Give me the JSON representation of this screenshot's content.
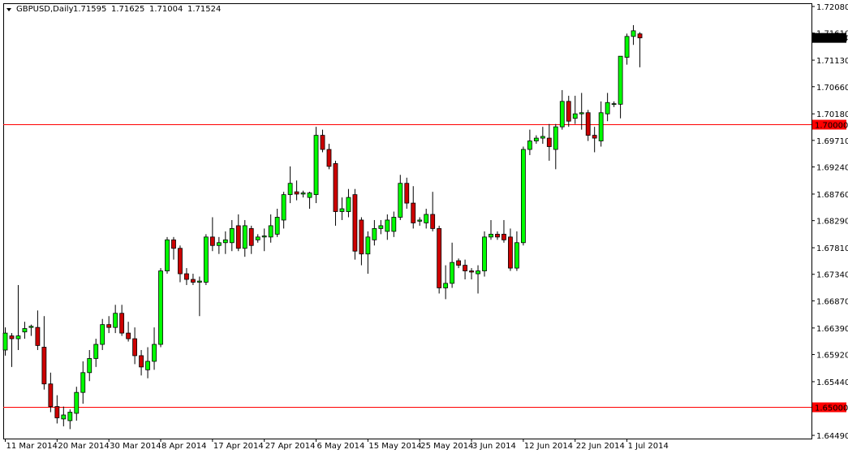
{
  "chart_data": {
    "type": "candlestick",
    "symbol": "GBPUSD,Daily",
    "categories": [
      "11 Mar 2014",
      null,
      null,
      null,
      null,
      null,
      null,
      null,
      "20 Mar 2014",
      null,
      null,
      null,
      null,
      null,
      null,
      null,
      "30 Mar 2014",
      null,
      null,
      null,
      null,
      null,
      null,
      null,
      "8 Apr 2014",
      null,
      null,
      null,
      null,
      null,
      null,
      null,
      "17 Apr 2014",
      null,
      null,
      null,
      null,
      null,
      null,
      null,
      "27 Apr 2014",
      null,
      null,
      null,
      null,
      null,
      null,
      null,
      "6 May 2014",
      null,
      null,
      null,
      null,
      null,
      null,
      null,
      "15 May 2014",
      null,
      null,
      null,
      null,
      null,
      null,
      null,
      "25 May 2014",
      null,
      null,
      null,
      null,
      null,
      null,
      null,
      "3 Jun 2014",
      null,
      null,
      null,
      null,
      null,
      null,
      null,
      "12 Jun 2014",
      null,
      null,
      null,
      null,
      null,
      null,
      null,
      "22 Jun 2014",
      null,
      null,
      null,
      null,
      null,
      null,
      null,
      "1 Jul 2014",
      null,
      null
    ],
    "open": [
      1.66,
      1.6625,
      1.662,
      1.6632,
      1.664,
      1.664,
      1.6605,
      1.654,
      1.65,
      1.6478,
      1.6475,
      1.6488,
      1.6525,
      1.656,
      1.6585,
      1.661,
      1.6645,
      1.664,
      1.6665,
      1.663,
      1.662,
      1.659,
      1.6565,
      1.658,
      1.661,
      1.674,
      1.6795,
      1.678,
      1.6735,
      1.6725,
      1.672,
      1.672,
      1.68,
      1.6785,
      1.679,
      1.679,
      1.682,
      1.678,
      1.6815,
      1.6795,
      1.68,
      1.68,
      1.6805,
      1.683,
      1.6875,
      1.688,
      1.6876,
      1.687,
      1.6875,
      1.698,
      1.6955,
      1.693,
      1.6845,
      1.6845,
      1.6875,
      1.683,
      1.677,
      1.6795,
      1.6815,
      1.681,
      1.681,
      1.6835,
      1.6895,
      1.686,
      1.6828,
      1.6825,
      1.684,
      1.6815,
      1.671,
      1.6718,
      1.6758,
      1.675,
      1.674,
      1.6735,
      1.674,
      1.68,
      1.6805,
      1.6805,
      1.68,
      1.6745,
      1.679,
      1.6955,
      1.697,
      1.6975,
      1.6975,
      1.6955,
      1.6995,
      1.704,
      1.701,
      1.7018,
      1.702,
      1.698,
      1.697,
      1.7018,
      1.7035,
      1.7035,
      1.7118,
      1.7155,
      1.71595
    ],
    "high": [
      1.664,
      1.663,
      1.6715,
      1.665,
      1.6645,
      1.667,
      1.666,
      1.656,
      1.652,
      1.65,
      1.6495,
      1.6535,
      1.658,
      1.66,
      1.662,
      1.6655,
      1.666,
      1.668,
      1.668,
      1.665,
      1.664,
      1.66,
      1.6605,
      1.664,
      1.6745,
      1.68,
      1.68,
      1.6785,
      1.6745,
      1.6735,
      1.673,
      1.6805,
      1.6835,
      1.68,
      1.681,
      1.683,
      1.684,
      1.683,
      1.682,
      1.6805,
      1.6815,
      1.684,
      1.685,
      1.688,
      1.6925,
      1.69,
      1.6882,
      1.688,
      1.6995,
      1.699,
      1.6965,
      1.6935,
      1.687,
      1.6885,
      1.6885,
      1.6835,
      1.681,
      1.683,
      1.683,
      1.684,
      1.6845,
      1.691,
      1.6905,
      1.689,
      1.6835,
      1.685,
      1.688,
      1.682,
      1.675,
      1.679,
      1.6762,
      1.676,
      1.6745,
      1.675,
      1.681,
      1.683,
      1.681,
      1.683,
      1.6815,
      1.681,
      1.696,
      1.699,
      1.698,
      1.6995,
      1.7,
      1.7,
      1.706,
      1.705,
      1.705,
      1.7055,
      1.7025,
      1.6995,
      1.704,
      1.7055,
      1.704,
      1.712,
      1.716,
      1.7175,
      1.71625
    ],
    "low": [
      1.659,
      1.657,
      1.66,
      1.662,
      1.6625,
      1.66,
      1.653,
      1.649,
      1.647,
      1.6465,
      1.646,
      1.6475,
      1.6505,
      1.6545,
      1.657,
      1.66,
      1.663,
      1.663,
      1.6625,
      1.6615,
      1.6575,
      1.6555,
      1.655,
      1.6565,
      1.6605,
      1.6735,
      1.676,
      1.672,
      1.6715,
      1.6715,
      1.666,
      1.6715,
      1.6775,
      1.677,
      1.677,
      1.6775,
      1.6775,
      1.6765,
      1.677,
      1.679,
      1.6775,
      1.679,
      1.68,
      1.6815,
      1.686,
      1.6865,
      1.687,
      1.685,
      1.686,
      1.695,
      1.692,
      1.682,
      1.683,
      1.6835,
      1.676,
      1.675,
      1.6735,
      1.6785,
      1.6805,
      1.6795,
      1.68,
      1.683,
      1.685,
      1.6815,
      1.682,
      1.6815,
      1.681,
      1.67,
      1.669,
      1.671,
      1.6745,
      1.6725,
      1.6725,
      1.67,
      1.673,
      1.6795,
      1.6795,
      1.679,
      1.674,
      1.674,
      1.6785,
      1.6945,
      1.6965,
      1.6965,
      1.6935,
      1.692,
      1.699,
      1.6995,
      1.7,
      1.699,
      1.697,
      1.695,
      1.696,
      1.7005,
      1.703,
      1.701,
      1.7105,
      1.714,
      1.71004
    ],
    "close": [
      1.663,
      1.662,
      1.6625,
      1.6638,
      1.6642,
      1.6608,
      1.654,
      1.65,
      1.648,
      1.6485,
      1.649,
      1.6525,
      1.656,
      1.6585,
      1.661,
      1.6645,
      1.664,
      1.6665,
      1.663,
      1.662,
      1.659,
      1.657,
      1.658,
      1.661,
      1.674,
      1.6795,
      1.678,
      1.6735,
      1.6725,
      1.672,
      1.6722,
      1.68,
      1.6785,
      1.679,
      1.6795,
      1.6815,
      1.678,
      1.682,
      1.6785,
      1.68,
      1.6802,
      1.682,
      1.6835,
      1.6875,
      1.6895,
      1.6876,
      1.6878,
      1.6878,
      1.698,
      1.6955,
      1.6925,
      1.6845,
      1.685,
      1.687,
      1.6775,
      1.677,
      1.68,
      1.6815,
      1.682,
      1.683,
      1.6835,
      1.6895,
      1.686,
      1.6825,
      1.683,
      1.684,
      1.6815,
      1.671,
      1.6718,
      1.6755,
      1.675,
      1.674,
      1.6738,
      1.674,
      1.68,
      1.6805,
      1.68,
      1.6795,
      1.6745,
      1.679,
      1.6955,
      1.697,
      1.6975,
      1.6978,
      1.696,
      1.6995,
      1.704,
      1.7005,
      1.7018,
      1.702,
      1.698,
      1.6975,
      1.702,
      1.7038,
      1.7036,
      1.712,
      1.7155,
      1.7165,
      1.71524
    ],
    "up_color": "#00ff00",
    "down_color": "#cc0000",
    "ylim": [
      1.64433,
      1.72137
    ],
    "yticks": [
      {
        "value": 1.7208,
        "label": "1.72080"
      },
      {
        "value": 1.7161,
        "label": "1.71610"
      },
      {
        "value": 1.7113,
        "label": "1.71130"
      },
      {
        "value": 1.7066,
        "label": "1.70660"
      },
      {
        "value": 1.7018,
        "label": "1.70180"
      },
      {
        "value": 1.6971,
        "label": "1.69710"
      },
      {
        "value": 1.6924,
        "label": "1.69240"
      },
      {
        "value": 1.6876,
        "label": "1.68760"
      },
      {
        "value": 1.6829,
        "label": "1.68290"
      },
      {
        "value": 1.6781,
        "label": "1.67810"
      },
      {
        "value": 1.6734,
        "label": "1.67340"
      },
      {
        "value": 1.6687,
        "label": "1.66870"
      },
      {
        "value": 1.6639,
        "label": "1.66390"
      },
      {
        "value": 1.6592,
        "label": "1.65920"
      },
      {
        "value": 1.6544,
        "label": "1.65440"
      },
      {
        "value": 1.6449,
        "label": "1.64490"
      }
    ],
    "hlines": [
      {
        "value": 1.7,
        "label": "1.70000"
      },
      {
        "value": 1.65,
        "label": "1.65000"
      }
    ],
    "hline_color": "#ff0000",
    "last_price": {
      "value": 1.71524,
      "label": "1.71524"
    }
  }
}
